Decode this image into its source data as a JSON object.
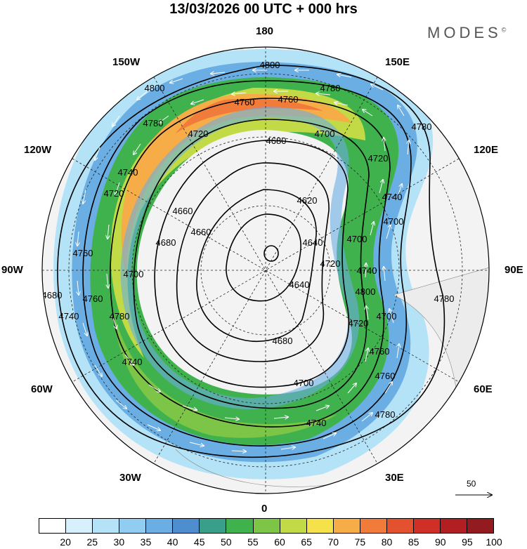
{
  "title": "13/03/2026  00 UTC  + 000 hrs",
  "brand": "MODES",
  "brand_mark": "©",
  "longitude_labels": [
    "180",
    "150E",
    "120E",
    "90E",
    "60E",
    "30E",
    "0",
    "30W",
    "60W",
    "90W",
    "120W",
    "150W"
  ],
  "contour_labels": [
    "4800",
    "4800",
    "4780",
    "4760",
    "4760",
    "4780",
    "4780",
    "4720",
    "4700",
    "4680",
    "4620",
    "4740",
    "4740",
    "4760",
    "4700",
    "4660",
    "4680",
    "4640",
    "4640",
    "4700",
    "4720",
    "4740",
    "4760",
    "4780",
    "4700",
    "4740",
    "4780",
    "4740",
    "4720",
    "4700",
    "4680",
    "4680",
    "4760",
    "4800",
    "4780",
    "4760",
    "4720",
    "4720",
    "4700",
    "4660",
    "4740"
  ],
  "wind_reference": "50",
  "colorbar": {
    "labels": [
      "20",
      "25",
      "30",
      "35",
      "40",
      "45",
      "50",
      "55",
      "60",
      "65",
      "70",
      "75",
      "80",
      "85",
      "90",
      "95",
      "100"
    ],
    "colors": [
      "#ffffff",
      "#d6f1fb",
      "#b4e2f7",
      "#90cdf0",
      "#6aaee3",
      "#4e8ece",
      "#3a9f8a",
      "#40b24d",
      "#7cc547",
      "#c2da45",
      "#f5e14a",
      "#f6ad47",
      "#f07b3a",
      "#e4512f",
      "#d02f27",
      "#b11f23",
      "#931a1e"
    ]
  }
}
